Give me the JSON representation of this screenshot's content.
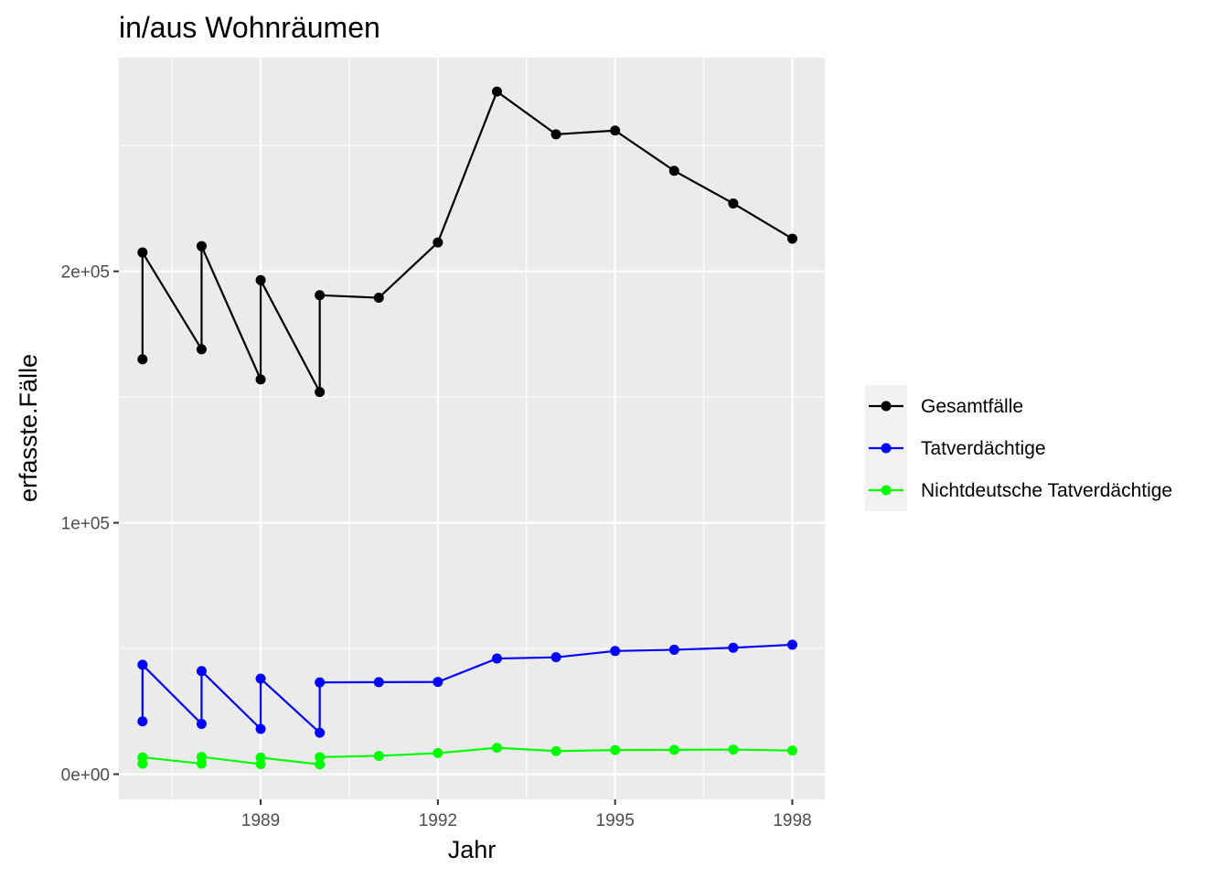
{
  "chart_data": {
    "type": "line",
    "title": "in/aus Wohnräumen",
    "xlabel": "Jahr",
    "ylabel": "erfasste.Fälle",
    "xlim": [
      1986.6,
      1998.55
    ],
    "ylim": [
      -10000,
      285000
    ],
    "x_ticks": [
      {
        "value": 1989,
        "label": "1989"
      },
      {
        "value": 1992,
        "label": "1992"
      },
      {
        "value": 1995,
        "label": "1995"
      },
      {
        "value": 1998,
        "label": "1998"
      }
    ],
    "x_minor_ticks": [
      1987.5,
      1990.5,
      1993.5,
      1996.5
    ],
    "y_ticks": [
      {
        "value": 0,
        "label": "0e+00"
      },
      {
        "value": 100000,
        "label": "1e+05"
      },
      {
        "value": 200000,
        "label": "2e+05"
      }
    ],
    "y_minor_ticks": [
      50000,
      150000,
      250000
    ],
    "grid": true,
    "legend_position": "right",
    "series": [
      {
        "name": "Gesamtfälle",
        "color": "#000000",
        "x": [
          1987,
          1987,
          1988,
          1988,
          1989,
          1989,
          1990,
          1990,
          1991,
          1992,
          1993,
          1994,
          1995,
          1996,
          1997,
          1998
        ],
        "y": [
          165000,
          207500,
          169000,
          210000,
          157000,
          196500,
          152000,
          190500,
          189500,
          211500,
          271500,
          254500,
          256000,
          240000,
          227000,
          213000
        ]
      },
      {
        "name": "Tatverdächtige",
        "color": "#0000ff",
        "x": [
          1987,
          1987,
          1988,
          1988,
          1989,
          1989,
          1990,
          1990,
          1991,
          1992,
          1993,
          1994,
          1995,
          1996,
          1997,
          1998
        ],
        "y": [
          21000,
          43500,
          20000,
          41000,
          18000,
          38000,
          16500,
          36500,
          36600,
          36700,
          46000,
          46500,
          49000,
          49500,
          50300,
          51500
        ]
      },
      {
        "name": "Nichtdeutsche Tatverdächtige",
        "color": "#00ff00",
        "x": [
          1987,
          1987,
          1988,
          1988,
          1989,
          1989,
          1990,
          1990,
          1991,
          1992,
          1993,
          1994,
          1995,
          1996,
          1997,
          1998
        ],
        "y": [
          4200,
          6700,
          4200,
          6900,
          4000,
          6600,
          3900,
          6800,
          7300,
          8400,
          10500,
          9200,
          9600,
          9700,
          9800,
          9400
        ]
      }
    ]
  }
}
